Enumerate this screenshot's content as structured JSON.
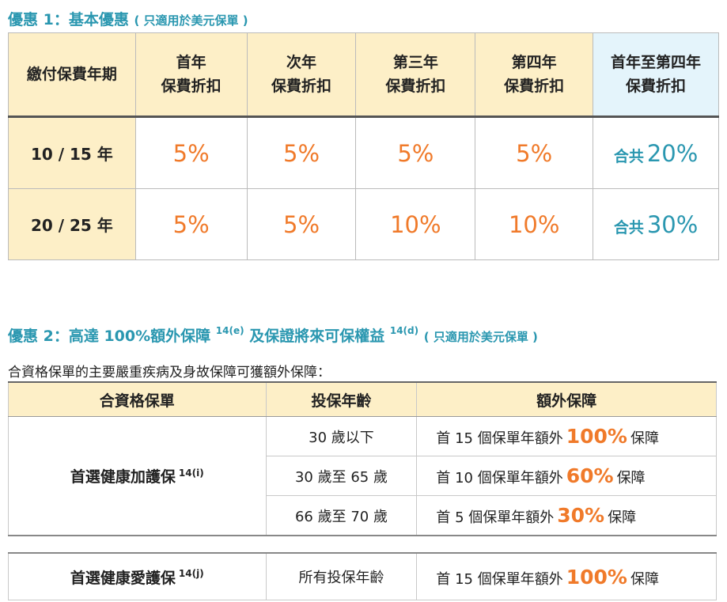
{
  "offer1": {
    "label": "優惠 1：基本優惠",
    "note": "( 只適用於美元保單 )",
    "headers": {
      "term": "繳付保費年期",
      "y1": [
        "首年",
        "保費折扣"
      ],
      "y2": [
        "次年",
        "保費折扣"
      ],
      "y3": [
        "第三年",
        "保費折扣"
      ],
      "y4": [
        "第四年",
        "保費折扣"
      ],
      "total": [
        "首年至第四年",
        "保費折扣"
      ]
    },
    "rows": [
      {
        "term": "10 / 15 年",
        "y1": "5%",
        "y2": "5%",
        "y3": "5%",
        "y4": "5%",
        "total_word": "合共",
        "total_pct": "20%"
      },
      {
        "term": "20 / 25 年",
        "y1": "5%",
        "y2": "5%",
        "y3": "10%",
        "y4": "10%",
        "total_word": "合共",
        "total_pct": "30%"
      }
    ]
  },
  "offer2": {
    "label_a": "優惠 2：高達 100%額外保障",
    "sup_a": "14(e)",
    "label_b": "及保證將來可保權益",
    "sup_b": "14(d)",
    "note": "( 只適用於美元保單 )",
    "intro": "合資格保單的主要嚴重疾病及身故保障可獲額外保障：",
    "headers": {
      "plan": "合資格保單",
      "age": "投保年齡",
      "benefit": "額外保障"
    },
    "plan1": {
      "name": "首選健康加護保",
      "sup": "14(i)",
      "rows": [
        {
          "age": "30 歲以下",
          "pre": "首 15 個保單年額外",
          "pct": "100%",
          "post": "保障"
        },
        {
          "age": "30 歲至 65 歲",
          "pre": "首 10 個保單年額外",
          "pct": "60%",
          "post": "保障"
        },
        {
          "age": "66 歲至 70 歲",
          "pre": "首 5 個保單年額外",
          "pct": "30%",
          "post": "保障"
        }
      ]
    },
    "plan2": {
      "name": "首選健康愛護保",
      "sup": "14(j)",
      "rows": [
        {
          "age": "所有投保年齡",
          "pre": "首 15 個保單年額外",
          "pct": "100%",
          "post": "保障"
        }
      ]
    }
  },
  "colors": {
    "accent_teal": "#2a97b0",
    "accent_orange": "#f07a2a",
    "header_cream": "#fdefc7",
    "header_blue": "#e4f4fb"
  }
}
